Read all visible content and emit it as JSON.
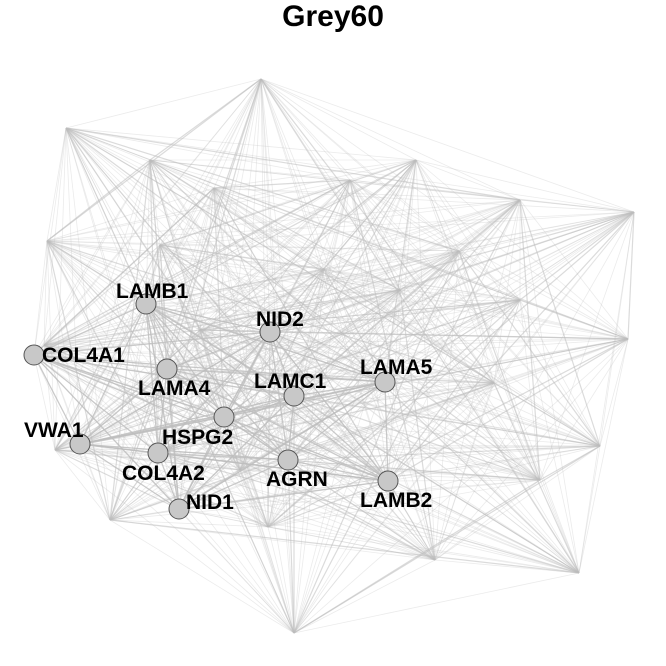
{
  "title": "Grey60",
  "colors": {
    "edge": "#bdbdbd",
    "node_fill": "#c8c8c8",
    "node_stroke": "#555555",
    "label": "#000000",
    "background": "#ffffff"
  },
  "labeled_nodes": [
    {
      "id": "LAMB1",
      "label": "LAMB1"
    },
    {
      "id": "NID2",
      "label": "NID2"
    },
    {
      "id": "COL4A1",
      "label": "COL4A1"
    },
    {
      "id": "LAMA4",
      "label": "LAMA4"
    },
    {
      "id": "LAMC1",
      "label": "LAMC1"
    },
    {
      "id": "LAMA5",
      "label": "LAMA5"
    },
    {
      "id": "VWA1",
      "label": "VWA1"
    },
    {
      "id": "HSPG2",
      "label": "HSPG2"
    },
    {
      "id": "COL4A2",
      "label": "COL4A2"
    },
    {
      "id": "AGRN",
      "label": "AGRN"
    },
    {
      "id": "NID1",
      "label": "NID1"
    },
    {
      "id": "LAMB2",
      "label": "LAMB2"
    }
  ]
}
